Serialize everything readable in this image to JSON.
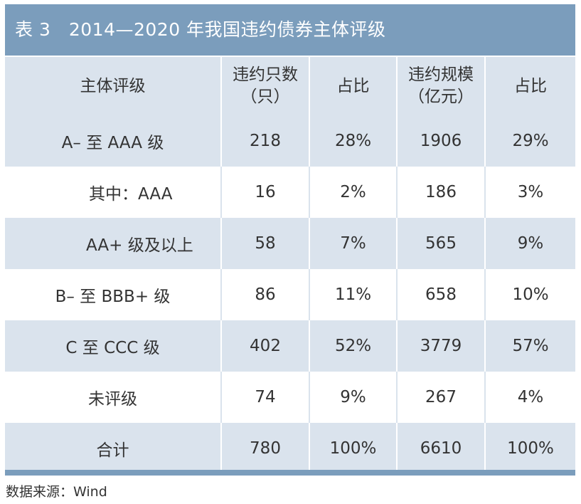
{
  "title": "表 3　2014—2020 年我国违约债券主体评级",
  "header": {
    "col1": "主体评级",
    "col2_line1": "违约只数",
    "col2_line2": "（只）",
    "col3": "占比",
    "col4_line1": "违约规模",
    "col4_line2": "（亿元）",
    "col5": "占比"
  },
  "rows": [
    {
      "label": "A– 至 AAA 级",
      "count": "218",
      "count_pct": "28%",
      "amount": "1906",
      "amount_pct": "29%"
    },
    {
      "label": "其中：AAA",
      "count": "16",
      "count_pct": "2%",
      "amount": "186",
      "amount_pct": "3%"
    },
    {
      "label": "AA+ 级及以上",
      "count": "58",
      "count_pct": "7%",
      "amount": "565",
      "amount_pct": "9%"
    },
    {
      "label": "B– 至 BBB+ 级",
      "count": "86",
      "count_pct": "11%",
      "amount": "658",
      "amount_pct": "10%"
    },
    {
      "label": "C 至 CCC 级",
      "count": "402",
      "count_pct": "52%",
      "amount": "3779",
      "amount_pct": "57%"
    },
    {
      "label": "未评级",
      "count": "74",
      "count_pct": "9%",
      "amount": "267",
      "amount_pct": "4%"
    },
    {
      "label": "合计",
      "count": "780",
      "count_pct": "100%",
      "amount": "6610",
      "amount_pct": "100%"
    }
  ],
  "source": "数据来源：Wind",
  "colors": {
    "title_bar": "#7b9dbc",
    "shaded_row": "#dae3ed",
    "text": "#333333"
  }
}
